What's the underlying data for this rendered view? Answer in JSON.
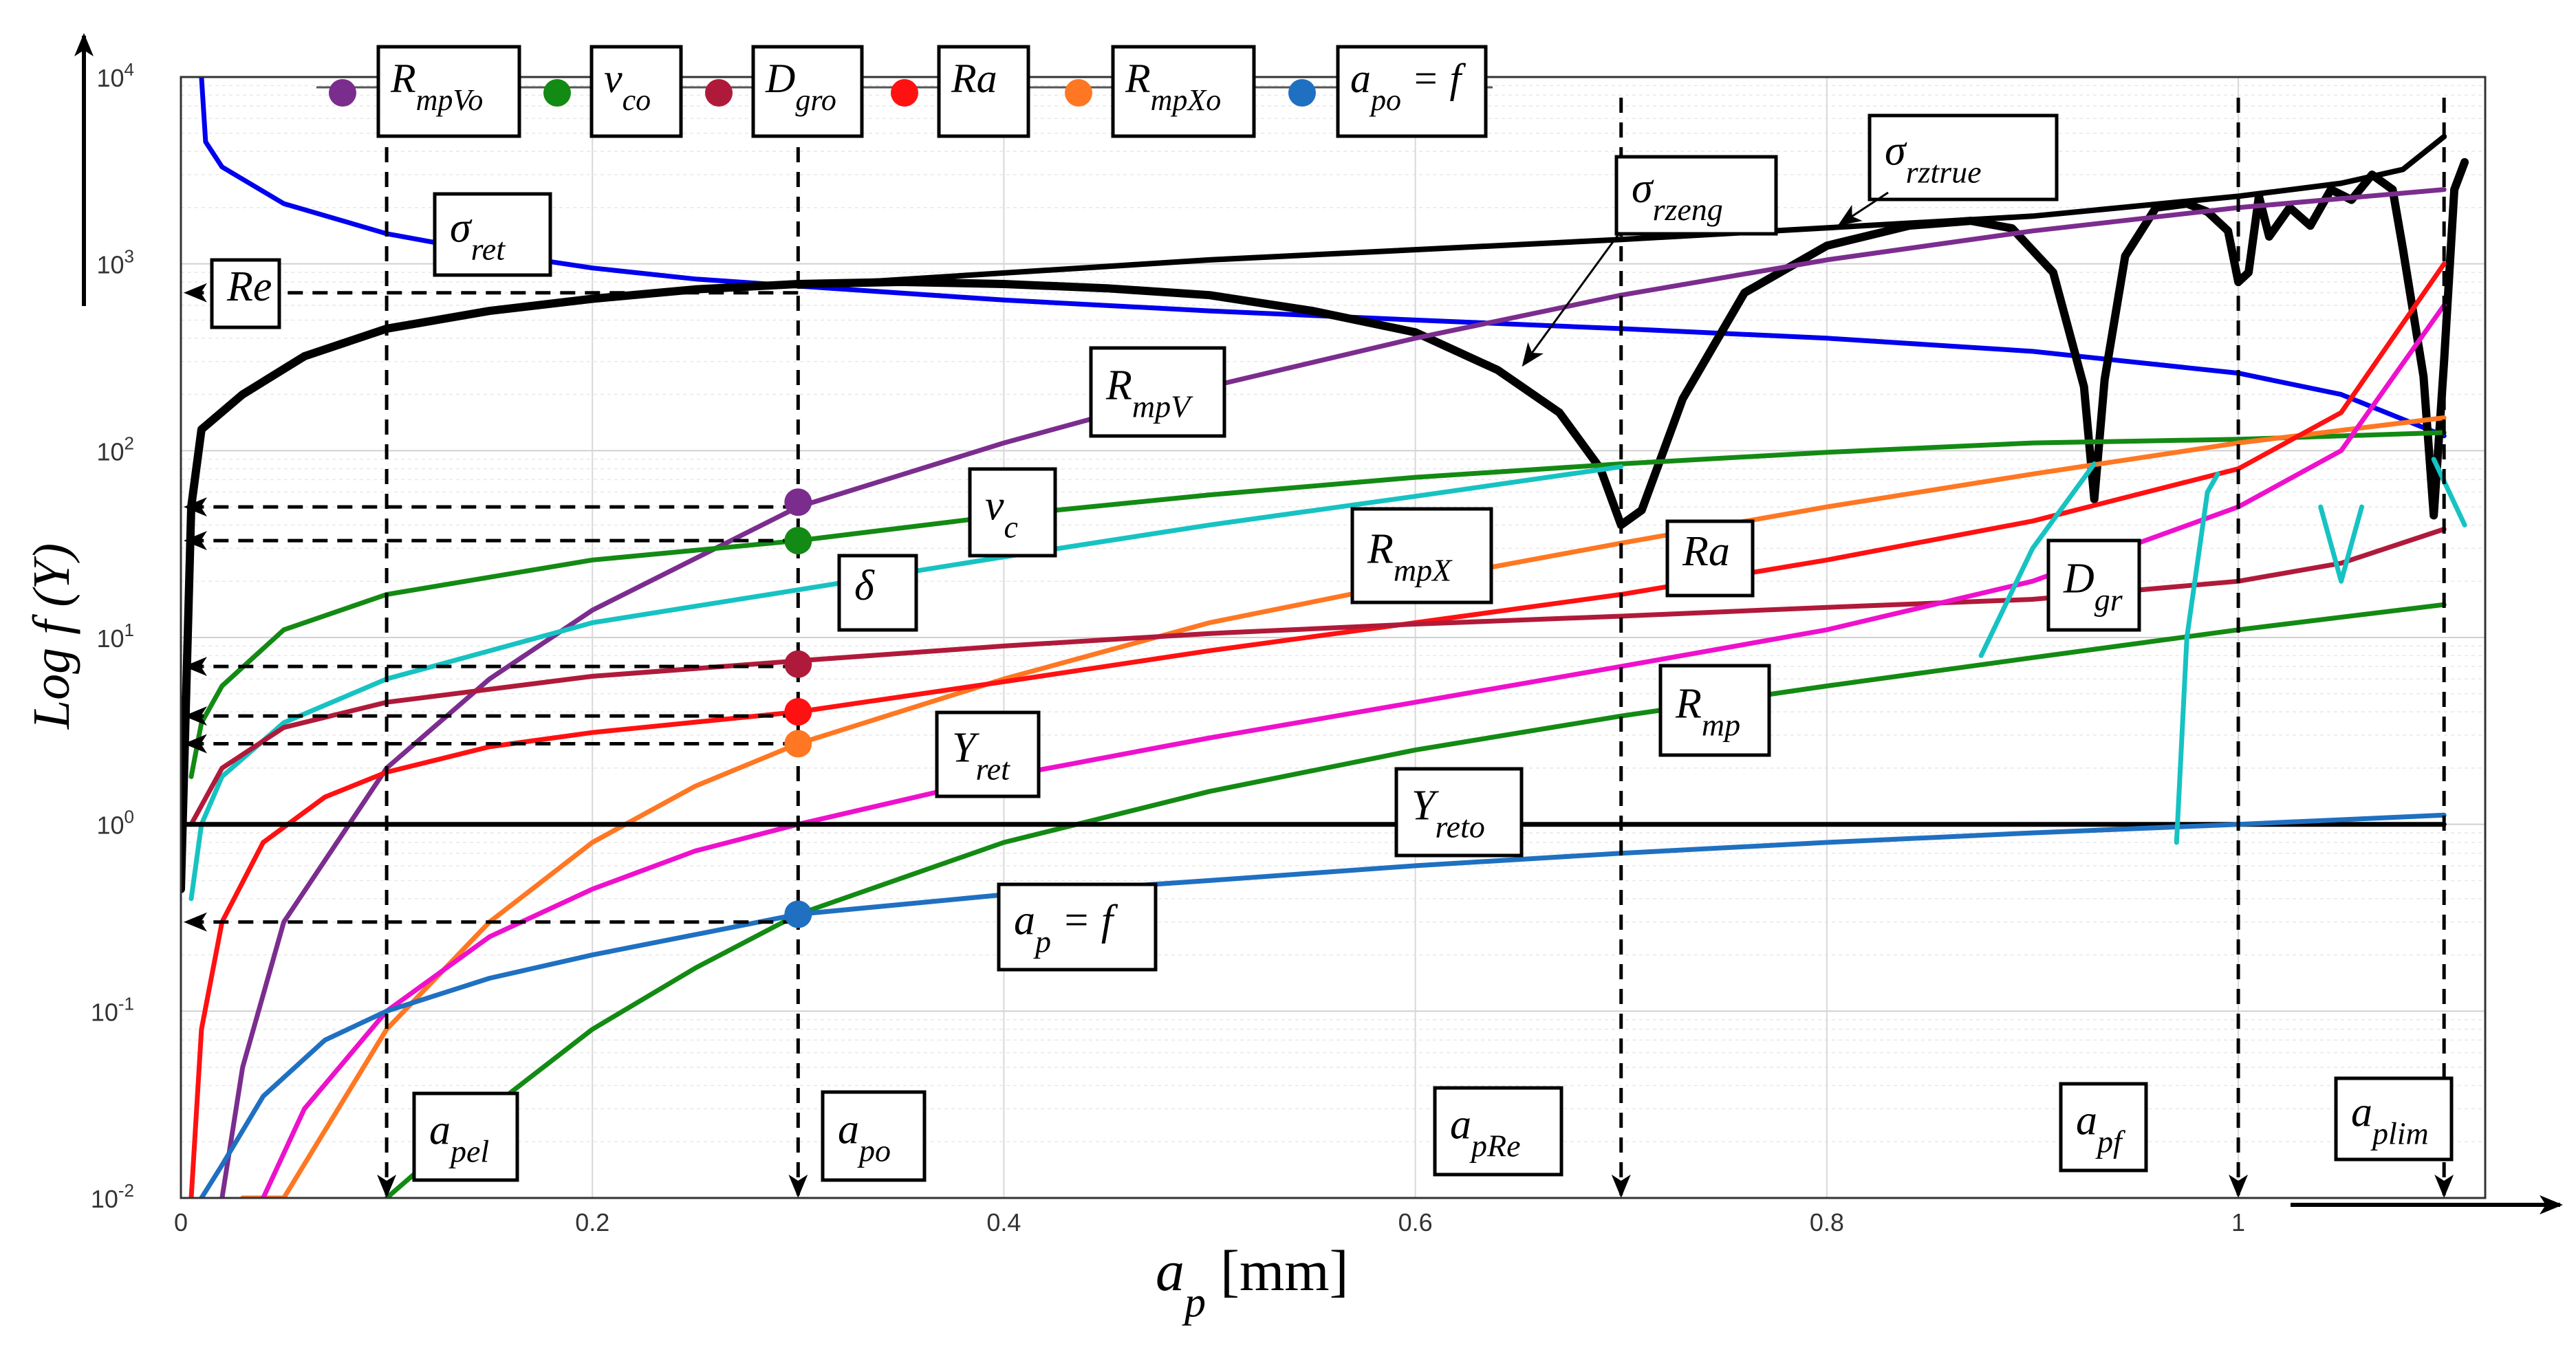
{
  "chart_data": {
    "type": "line",
    "yscale": "log",
    "xlim": [
      0,
      1.12
    ],
    "ylim": [
      0.01,
      10000
    ],
    "xticks": [
      {
        "v": 0,
        "label": "0"
      },
      {
        "v": 0.2,
        "label": "0.2"
      },
      {
        "v": 0.4,
        "label": "0.4"
      },
      {
        "v": 0.6,
        "label": "0.6"
      },
      {
        "v": 0.8,
        "label": "0.8"
      },
      {
        "v": 1.0,
        "label": "1"
      }
    ],
    "yticks": [
      {
        "v": 0.01,
        "base": "10",
        "exp": "-2"
      },
      {
        "v": 0.1,
        "base": "10",
        "exp": "-1"
      },
      {
        "v": 1,
        "base": "10",
        "exp": "0"
      },
      {
        "v": 10,
        "base": "10",
        "exp": "1"
      },
      {
        "v": 100,
        "base": "10",
        "exp": "2"
      },
      {
        "v": 1000,
        "base": "10",
        "exp": "3"
      },
      {
        "v": 10000,
        "base": "10",
        "exp": "4"
      }
    ],
    "xlabel": {
      "main": "a",
      "sub": "p",
      "unit": " [mm]"
    },
    "ylabel": "Log f (Y)",
    "series": [
      {
        "name": "sigma_ret",
        "color": "#0000ee",
        "width": 7,
        "x": [
          0.01,
          0.012,
          0.02,
          0.05,
          0.1,
          0.15,
          0.2,
          0.25,
          0.3,
          0.4,
          0.5,
          0.6,
          0.7,
          0.8,
          0.9,
          1.0,
          1.05,
          1.1
        ],
        "y": [
          10000,
          4500,
          3300,
          2100,
          1450,
          1150,
          950,
          830,
          760,
          640,
          560,
          500,
          450,
          400,
          340,
          260,
          200,
          120
        ]
      },
      {
        "name": "sigma_rztrue",
        "color": "#000000",
        "width": 8,
        "x": [
          0.3,
          0.5,
          0.7,
          0.9,
          1.0,
          1.05,
          1.08,
          1.1
        ],
        "y": [
          760,
          1050,
          1350,
          1800,
          2300,
          2700,
          3200,
          4800
        ]
      },
      {
        "name": "sigma_rzeng",
        "color": "#000000",
        "width": 12,
        "x": [
          0.0,
          0.005,
          0.01,
          0.03,
          0.06,
          0.1,
          0.15,
          0.2,
          0.25,
          0.3,
          0.35,
          0.4,
          0.45,
          0.5,
          0.55,
          0.6,
          0.64,
          0.67,
          0.69,
          0.7,
          0.71,
          0.73,
          0.76,
          0.8,
          0.84,
          0.87,
          0.89,
          0.91,
          0.925,
          0.93,
          0.935,
          0.945,
          0.96,
          0.975,
          0.985,
          0.995,
          1.0,
          1.005,
          1.01,
          1.015,
          1.025,
          1.035,
          1.045,
          1.055,
          1.065,
          1.075,
          1.08,
          1.09,
          1.095,
          1.1,
          1.105,
          1.11
        ],
        "y": [
          0.45,
          50,
          130,
          200,
          320,
          450,
          560,
          650,
          730,
          780,
          800,
          780,
          740,
          680,
          560,
          430,
          270,
          160,
          80,
          40,
          48,
          190,
          700,
          1250,
          1600,
          1700,
          1550,
          900,
          220,
          55,
          240,
          1100,
          2000,
          2100,
          1900,
          1500,
          800,
          900,
          2300,
          1400,
          2000,
          1600,
          2500,
          2200,
          3000,
          2500,
          1200,
          250,
          45,
          300,
          2500,
          3500
        ]
      },
      {
        "name": "R_mpV",
        "color": "#7b2d8e",
        "width": 7,
        "x": [
          0.02,
          0.03,
          0.05,
          0.1,
          0.15,
          0.2,
          0.3,
          0.4,
          0.5,
          0.6,
          0.7,
          0.8,
          0.9,
          1.0,
          1.1
        ],
        "y": [
          0.01,
          0.05,
          0.3,
          2,
          6,
          14,
          50,
          110,
          220,
          400,
          680,
          1050,
          1500,
          2000,
          2500
        ]
      },
      {
        "name": "v_c",
        "color": "#138a13",
        "width": 7,
        "x": [
          0.005,
          0.01,
          0.02,
          0.05,
          0.1,
          0.2,
          0.3,
          0.4,
          0.5,
          0.6,
          0.7,
          0.8,
          0.9,
          1.0,
          1.1
        ],
        "y": [
          1.8,
          3.5,
          5.5,
          11,
          17,
          26,
          33,
          45,
          58,
          72,
          85,
          98,
          110,
          115,
          125
        ]
      },
      {
        "name": "delta",
        "color": "#17c2c2",
        "width": 7,
        "x": [
          0.005,
          0.01,
          0.02,
          0.05,
          0.1,
          0.2,
          0.3,
          0.4,
          0.5,
          0.6,
          0.7
        ],
        "y": [
          0.4,
          1.0,
          1.8,
          3.5,
          6,
          12,
          18,
          27,
          40,
          57,
          82
        ]
      },
      {
        "name": "R_mpX",
        "color": "#ff7722",
        "width": 7,
        "x": [
          0.03,
          0.05,
          0.1,
          0.15,
          0.2,
          0.25,
          0.3,
          0.4,
          0.5,
          0.6,
          0.7,
          0.8,
          0.9,
          1.0,
          1.1
        ],
        "y": [
          0.004,
          0.01,
          0.08,
          0.3,
          0.8,
          1.6,
          2.7,
          6,
          12,
          20,
          32,
          50,
          75,
          110,
          150
        ]
      },
      {
        "name": "Ra",
        "color": "#ff1111",
        "width": 7,
        "x": [
          0.005,
          0.01,
          0.02,
          0.04,
          0.07,
          0.1,
          0.15,
          0.2,
          0.3,
          0.4,
          0.5,
          0.6,
          0.7,
          0.8,
          0.9,
          1.0,
          1.05,
          1.1
        ],
        "y": [
          0.01,
          0.08,
          0.3,
          0.8,
          1.4,
          1.9,
          2.6,
          3.1,
          4.0,
          5.8,
          8.5,
          12,
          17,
          26,
          42,
          80,
          160,
          1000
        ]
      },
      {
        "name": "D_gr",
        "color": "#b01a3a",
        "width": 7,
        "x": [
          0.005,
          0.02,
          0.05,
          0.1,
          0.2,
          0.3,
          0.4,
          0.5,
          0.6,
          0.7,
          0.8,
          0.9,
          1.0,
          1.05,
          1.1
        ],
        "y": [
          1.0,
          2.0,
          3.3,
          4.5,
          6.2,
          7.5,
          9,
          10.5,
          11.8,
          13,
          14.5,
          16,
          20,
          25,
          38
        ]
      },
      {
        "name": "Y_ret",
        "color": "#ee11cc",
        "width": 7,
        "x": [
          0.04,
          0.06,
          0.1,
          0.15,
          0.2,
          0.25,
          0.3,
          0.4,
          0.5,
          0.6,
          0.7,
          0.8,
          0.9,
          1.0,
          1.05,
          1.1
        ],
        "y": [
          0.01,
          0.03,
          0.1,
          0.25,
          0.45,
          0.72,
          1.0,
          1.8,
          2.9,
          4.5,
          7,
          11,
          20,
          50,
          100,
          600
        ]
      },
      {
        "name": "R_mp",
        "color": "#138a13",
        "width": 7,
        "x": [
          0.1,
          0.15,
          0.2,
          0.25,
          0.3,
          0.4,
          0.5,
          0.6,
          0.7,
          0.8,
          0.9,
          1.0,
          1.1
        ],
        "y": [
          0.01,
          0.03,
          0.08,
          0.17,
          0.33,
          0.8,
          1.5,
          2.5,
          3.8,
          5.5,
          7.8,
          11,
          15
        ]
      },
      {
        "name": "Y_reto",
        "color": "#000000",
        "width": 7,
        "x": [
          0,
          1.1
        ],
        "y": [
          1,
          1
        ]
      },
      {
        "name": "a_p_f",
        "color": "#1f70c1",
        "width": 7,
        "x": [
          0.01,
          0.02,
          0.04,
          0.07,
          0.1,
          0.15,
          0.2,
          0.3,
          0.4,
          0.5,
          0.6,
          0.7,
          0.8,
          0.9,
          1.0,
          1.1
        ],
        "y": [
          0.01,
          0.015,
          0.035,
          0.07,
          0.1,
          0.15,
          0.2,
          0.33,
          0.42,
          0.5,
          0.6,
          0.7,
          0.8,
          0.9,
          1.0,
          1.12
        ]
      },
      {
        "name": "cyan_frag1",
        "color": "#17c2c2",
        "width": 7,
        "x": [
          0.875,
          0.9,
          0.93
        ],
        "y": [
          8,
          30,
          85
        ]
      },
      {
        "name": "cyan_frag2",
        "color": "#17c2c2",
        "width": 7,
        "x": [
          0.97,
          0.975,
          0.985,
          0.99
        ],
        "y": [
          0.8,
          10,
          60,
          75
        ]
      },
      {
        "name": "cyan_frag3",
        "color": "#17c2c2",
        "width": 7,
        "x": [
          1.04,
          1.05,
          1.06
        ],
        "y": [
          50,
          20,
          50
        ]
      },
      {
        "name": "cyan_frag4",
        "color": "#17c2c2",
        "width": 7,
        "x": [
          1.095,
          1.11
        ],
        "y": [
          90,
          40
        ]
      }
    ],
    "markers": [
      {
        "name": "R_mpVo",
        "x": 0.3,
        "y": 53,
        "color": "#7b2d8e"
      },
      {
        "name": "v_co",
        "x": 0.3,
        "y": 33,
        "color": "#138a13"
      },
      {
        "name": "D_gro",
        "x": 0.3,
        "y": 7.2,
        "color": "#b01a3a"
      },
      {
        "name": "Ra",
        "x": 0.3,
        "y": 4.0,
        "color": "#ff1111"
      },
      {
        "name": "R_mpXo",
        "x": 0.3,
        "y": 2.7,
        "color": "#ff7722"
      },
      {
        "name": "a_po_f",
        "x": 0.3,
        "y": 0.33,
        "color": "#1f70c1"
      }
    ],
    "vlines": [
      0.1,
      0.3,
      0.7,
      1.0,
      1.1
    ],
    "hlines": [
      {
        "y": 700,
        "x_from": 0.3
      },
      {
        "y": 50,
        "x_from": 0.3
      },
      {
        "y": 33,
        "x_from": 0.3
      },
      {
        "y": 7,
        "x_from": 0.3
      },
      {
        "y": 3.8,
        "x_from": 0.3
      },
      {
        "y": 2.7,
        "x_from": 0.3
      },
      {
        "y": 0.3,
        "x_from": 0.3
      }
    ],
    "legend": {
      "placement": "top",
      "items": [
        {
          "main": "R",
          "sub": "mpVo",
          "color": "#7b2d8e"
        },
        {
          "main": "v",
          "sub": "co",
          "color": "#138a13"
        },
        {
          "main": "D",
          "sub": "gro",
          "color": "#b01a3a"
        },
        {
          "main": "Ra",
          "sub": "",
          "color": "#ff1111"
        },
        {
          "main": "R",
          "sub": "mpXo",
          "color": "#ff7722"
        },
        {
          "main": "a",
          "sub": "po",
          "tail": " = f",
          "color": "#1f70c1"
        }
      ]
    },
    "annotations": [
      {
        "id": "re",
        "main": "Re",
        "sub": ""
      },
      {
        "id": "sigma_ret",
        "main": "σ",
        "sub": "ret"
      },
      {
        "id": "sigma_rzeng",
        "main": "σ",
        "sub": "rzeng"
      },
      {
        "id": "sigma_rztrue",
        "main": "σ",
        "sub": "rztrue"
      },
      {
        "id": "r_mpv",
        "main": "R",
        "sub": "mpV"
      },
      {
        "id": "v_c",
        "main": "v",
        "sub": "c"
      },
      {
        "id": "delta",
        "main": "δ",
        "sub": ""
      },
      {
        "id": "r_mpx",
        "main": "R",
        "sub": "mpX"
      },
      {
        "id": "ra",
        "main": "Ra",
        "sub": ""
      },
      {
        "id": "d_gr",
        "main": "D",
        "sub": "gr"
      },
      {
        "id": "r_mp",
        "main": "R",
        "sub": "mp"
      },
      {
        "id": "y_ret",
        "main": "Y",
        "sub": "ret"
      },
      {
        "id": "y_reto",
        "main": "Y",
        "sub": "reto"
      },
      {
        "id": "a_p_f",
        "main": "a",
        "sub": "p",
        "tail": " = f"
      },
      {
        "id": "a_pel",
        "main": "a",
        "sub": "pel"
      },
      {
        "id": "a_po",
        "main": "a",
        "sub": "po"
      },
      {
        "id": "a_pre",
        "main": "a",
        "sub": "pRe"
      },
      {
        "id": "a_pf",
        "main": "a",
        "sub": "pf"
      },
      {
        "id": "a_plim",
        "main": "a",
        "sub": "plim"
      }
    ]
  }
}
